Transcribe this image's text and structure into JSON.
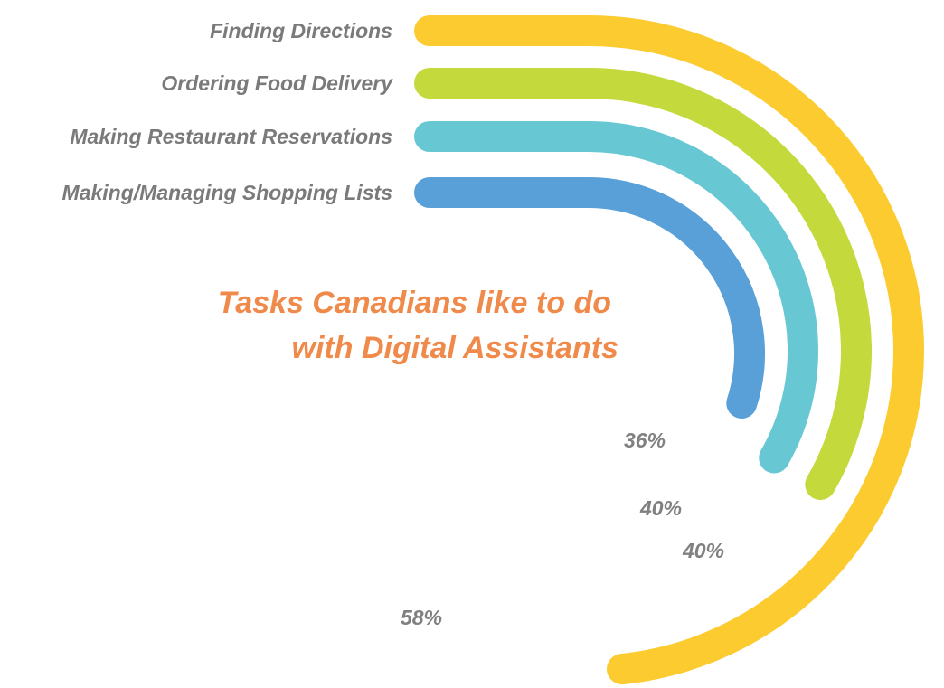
{
  "chart_data": {
    "type": "radial-bar",
    "title_lines": [
      "Tasks Canadians like to do",
      "with Digital Assistants"
    ],
    "categories": [
      "Finding Directions",
      "Ordering Food Delivery",
      "Making Restaurant Reservations",
      "Making/Managing Shopping Lists"
    ],
    "values": [
      58,
      40,
      40,
      36
    ],
    "value_labels": [
      "58%",
      "40%",
      "40%",
      "36%"
    ],
    "colors": [
      "#fccb30",
      "#c4d93c",
      "#67c8d4",
      "#59a0d8"
    ],
    "title_color": "#f08a4b",
    "label_color": "#7a7a7a"
  }
}
